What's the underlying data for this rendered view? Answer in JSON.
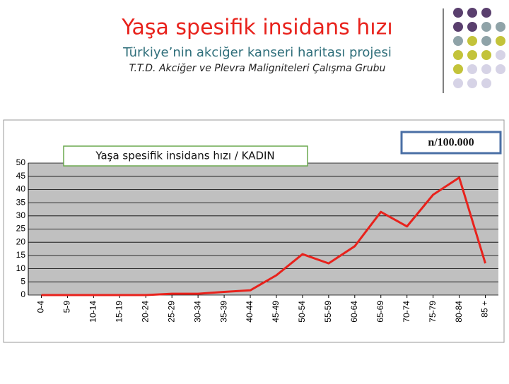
{
  "chart_data": {
    "type": "line",
    "title": "Yaşa spesifik insidans hızı",
    "subtitle": "Türkiye’nin akciğer kanseri haritası projesi",
    "credit": "T.T.D. Akciğer ve Plevra Maligniteleri Çalışma Grubu",
    "unit_label": "n/100.000",
    "categories": [
      "0-4",
      "5-9",
      "10-14",
      "15-19",
      "20-24",
      "25-29",
      "30-34",
      "35-39",
      "40-44",
      "45-49",
      "50-54",
      "55-59",
      "60-64",
      "65-69",
      "70-74",
      "75-79",
      "80-84",
      "85 +"
    ],
    "series": [
      {
        "name": "Yaşa spesifik insidans hızı / KADIN",
        "color": "#e8221c",
        "values": [
          0,
          0,
          0,
          0,
          0,
          0.5,
          0.5,
          1.2,
          1.8,
          7.5,
          15.5,
          12,
          18.5,
          31.5,
          26,
          38,
          44.5,
          12
        ]
      }
    ],
    "ylim": [
      0,
      50
    ],
    "yticks": [
      0,
      5,
      10,
      15,
      20,
      25,
      30,
      35,
      40,
      45,
      50
    ],
    "grid": true,
    "plot_background": "#c0c0c0"
  }
}
